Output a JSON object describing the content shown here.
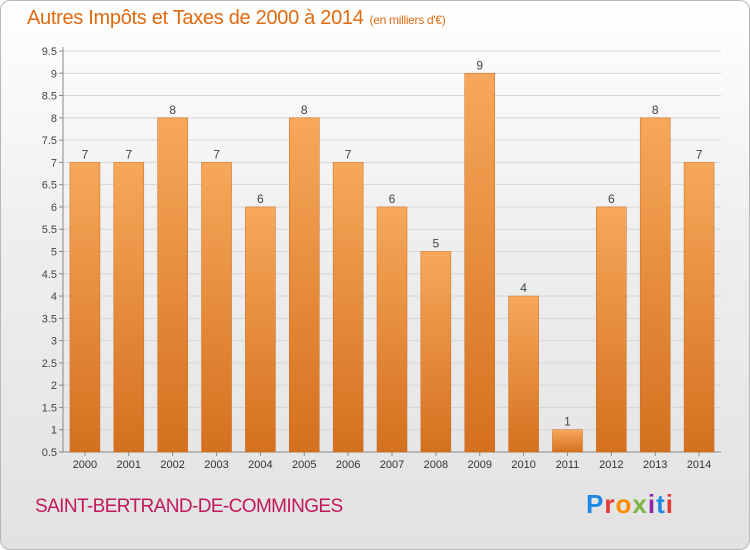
{
  "header": {
    "title": "Autres Impôts et Taxes de 2000 à 2014",
    "unit": "(en milliers d'€)"
  },
  "footer": {
    "commune": "SAINT-BERTRAND-DE-COMMINGES",
    "logo_text": "Proxiti",
    "logo_colors": [
      "#1e88e5",
      "#e53935",
      "#fb8c00",
      "#7cb342",
      "#8e24aa",
      "#1e88e5",
      "#e53935"
    ]
  },
  "colors": {
    "bar_top": "#f7a85a",
    "bar_bottom": "#d4701f",
    "grid": "#d6d6d6",
    "title": "#e06a10",
    "commune": "#c2185b"
  },
  "chart_data": {
    "type": "bar",
    "title": "Autres Impôts et Taxes de 2000 à 2014",
    "ylabel": "",
    "xlabel": "",
    "categories": [
      "2000",
      "2001",
      "2002",
      "2003",
      "2004",
      "2005",
      "2006",
      "2007",
      "2008",
      "2009",
      "2010",
      "2011",
      "2012",
      "2013",
      "2014"
    ],
    "values": [
      7,
      7,
      8,
      7,
      6,
      8,
      7,
      6,
      5,
      9,
      4,
      1,
      6,
      8,
      7
    ],
    "ylim": [
      0.5,
      9.5
    ],
    "yticks": [
      "0.5",
      "1",
      "1.5",
      "2",
      "2.5",
      "3",
      "3.5",
      "4",
      "4.5",
      "5",
      "5.5",
      "6",
      "6.5",
      "7",
      "7.5",
      "8",
      "8.5",
      "9",
      "9.5"
    ],
    "grid": true,
    "legend": "none"
  }
}
